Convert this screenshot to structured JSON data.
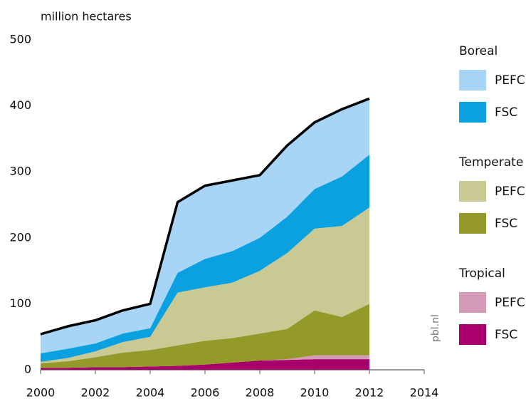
{
  "chart_data": {
    "type": "stacked_area",
    "y_label": "million hectares",
    "watermark": "pbl.nl",
    "x": [
      2000,
      2001,
      2002,
      2003,
      2004,
      2005,
      2006,
      2007,
      2008,
      2009,
      2010,
      2011,
      2012
    ],
    "xlim": [
      2000,
      2014
    ],
    "xticks": [
      2000,
      2002,
      2004,
      2006,
      2008,
      2010,
      2012,
      2014
    ],
    "ylim": [
      0,
      500
    ],
    "yticks": [
      0,
      100,
      200,
      300,
      400,
      500
    ],
    "grid": false,
    "series": [
      {
        "group": "Tropical",
        "name": "FSC",
        "color": "#a8006b",
        "values": [
          3,
          3,
          4,
          4,
          5,
          6,
          8,
          11,
          14,
          15,
          16,
          16,
          16
        ]
      },
      {
        "group": "Tropical",
        "name": "PEFC",
        "color": "#d49ab8",
        "values": [
          0,
          0,
          0,
          0,
          0,
          0,
          0,
          0,
          0,
          1,
          6,
          6,
          6
        ]
      },
      {
        "group": "Temperate",
        "name": "FSC",
        "color": "#939a2a",
        "values": [
          7,
          10,
          15,
          22,
          25,
          31,
          36,
          37,
          41,
          46,
          68,
          58,
          78
        ]
      },
      {
        "group": "Temperate",
        "name": "PEFC",
        "color": "#c9c994",
        "values": [
          2,
          5,
          9,
          16,
          20,
          80,
          81,
          84,
          95,
          115,
          124,
          138,
          146
        ]
      },
      {
        "group": "Boreal",
        "name": "FSC",
        "color": "#0ba0e0",
        "values": [
          13,
          14,
          12,
          13,
          13,
          30,
          43,
          48,
          50,
          55,
          60,
          75,
          80
        ]
      },
      {
        "group": "Boreal",
        "name": "PEFC",
        "color": "#a8d4f5",
        "values": [
          29,
          34,
          35,
          35,
          37,
          107,
          111,
          107,
          95,
          108,
          101,
          102,
          85
        ]
      }
    ]
  }
}
